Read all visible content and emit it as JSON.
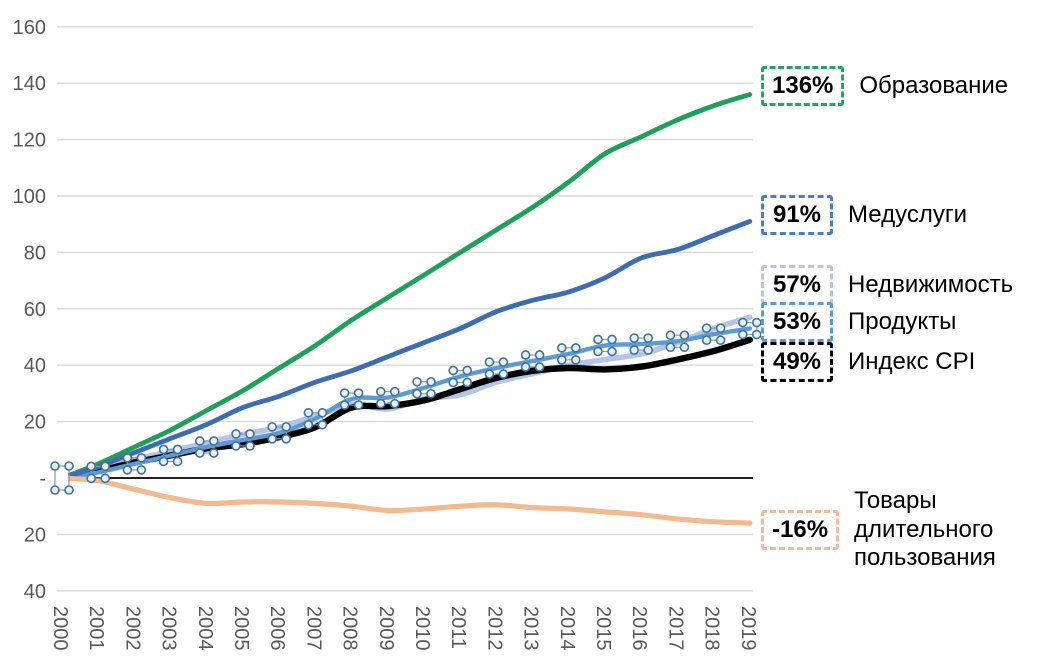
{
  "chart_data": {
    "type": "line",
    "title": "",
    "x_labels": [
      "2000",
      "2001",
      "2002",
      "2003",
      "2004",
      "2005",
      "2006",
      "2007",
      "2008",
      "2009",
      "2010",
      "2011",
      "2012",
      "2013",
      "2014",
      "2015",
      "2016",
      "2017",
      "2018",
      "2019"
    ],
    "ylim": [
      -40,
      160
    ],
    "grid": true,
    "legend_position": "right",
    "y_ticks": [
      {
        "v": 160,
        "label": "160"
      },
      {
        "v": 140,
        "label": "140"
      },
      {
        "v": 120,
        "label": "120"
      },
      {
        "v": 100,
        "label": "100"
      },
      {
        "v": 80,
        "label": "80"
      },
      {
        "v": 60,
        "label": "60"
      },
      {
        "v": 40,
        "label": "40"
      },
      {
        "v": 20,
        "label": "20"
      },
      {
        "v": 0,
        "label": "-"
      },
      {
        "v": -20,
        "label": "20"
      },
      {
        "v": -40,
        "label": "40"
      }
    ],
    "series": [
      {
        "key": "education",
        "name": "Образование",
        "end_label": "136%",
        "color": "#1EA05A",
        "box_color": "#21A55F",
        "width": 4.8,
        "selected": false,
        "values": [
          0,
          5,
          11,
          17,
          24,
          31,
          39,
          47,
          56,
          64,
          72,
          80,
          88,
          96,
          105,
          115,
          121,
          127,
          132,
          136
        ]
      },
      {
        "key": "medical-services",
        "name": "Медуслуги",
        "end_label": "91%",
        "color": "#3D6CB0",
        "box_color": "#4A7EC0",
        "width": 4.8,
        "selected": false,
        "values": [
          0,
          4,
          9,
          14,
          19,
          25,
          29,
          34,
          38,
          43,
          48,
          53,
          59,
          63,
          66,
          71,
          78,
          81,
          86,
          91
        ]
      },
      {
        "key": "real-estate",
        "name": "Недвижимость",
        "end_label": "57%",
        "color": "#B3C6E7",
        "box_color": "#B3C6E7",
        "width": 5.5,
        "selected": false,
        "values": [
          0,
          3,
          6.5,
          9.5,
          12.5,
          15.5,
          18,
          22,
          26,
          24.5,
          28,
          29.5,
          34,
          37,
          40,
          42,
          44,
          48,
          53,
          57
        ]
      },
      {
        "key": "groceries",
        "name": "Продукты",
        "end_label": "53%",
        "color": "#5B9BD5",
        "box_color": "#5B9BD5",
        "width": 4.4,
        "selected": true,
        "values": [
          0,
          2,
          5,
          8,
          11,
          13.5,
          16,
          21,
          28,
          28.5,
          32,
          36,
          39,
          41.5,
          44,
          47,
          47.5,
          48.5,
          51,
          53
        ]
      },
      {
        "key": "cpi-index",
        "name": "Индекс CPI",
        "end_label": "49%",
        "color": "#000000",
        "box_color": "#000000",
        "width": 6.4,
        "selected": false,
        "values": [
          0,
          2.5,
          5.5,
          8,
          10.5,
          12,
          14.5,
          18,
          25,
          25.5,
          27.5,
          31.5,
          35.5,
          38,
          39,
          38.5,
          39.5,
          42,
          45,
          49
        ]
      },
      {
        "key": "durable-goods",
        "name": "Товары длительного пользования",
        "end_label": "-16%",
        "color": "#F3B98F",
        "box_color": "#F2BB99",
        "width": 5.2,
        "selected": false,
        "values": [
          0,
          -1,
          -4,
          -7,
          -9,
          -8.5,
          -8.5,
          -9,
          -10,
          -11.5,
          -11,
          -10,
          -9.5,
          -10.5,
          -11,
          -12,
          -13,
          -14.5,
          -15.5,
          -16
        ]
      }
    ]
  },
  "colors": {
    "grid": "#D9D9D9",
    "zero_line": "#000000",
    "tick_text": "#595959",
    "handle_stroke": "#41719C",
    "handle_fill": "#E9F1FA",
    "handle_link": "#8A98A8"
  }
}
